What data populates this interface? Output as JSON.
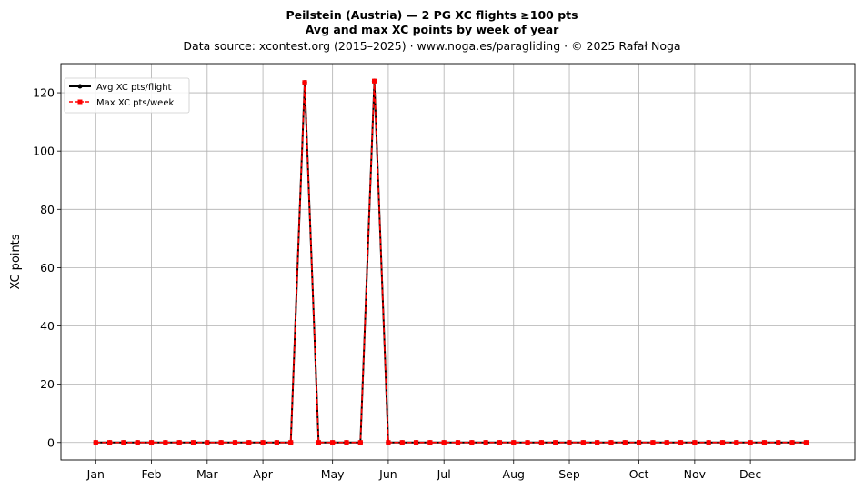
{
  "chart_data": {
    "type": "line",
    "title": "Peilstein (Austria)  —  2 PG XC flights ≥100 pts",
    "subtitle": "Avg and max XC points by week of year",
    "source": "Data source: xcontest.org (2015–2025)  ·  www.noga.es/paragliding  ·  © 2025 Rafał Noga",
    "ylabel": "XC points",
    "xlabel": "",
    "ylim": [
      -6,
      130
    ],
    "xlim": [
      -2.5,
      54.5
    ],
    "yticks": [
      0,
      20,
      40,
      60,
      80,
      100,
      120
    ],
    "xticks": [
      {
        "label": "Jan",
        "week": 0
      },
      {
        "label": "Feb",
        "week": 4
      },
      {
        "label": "Mar",
        "week": 8
      },
      {
        "label": "Apr",
        "week": 12
      },
      {
        "label": "May",
        "week": 17
      },
      {
        "label": "Jun",
        "week": 21
      },
      {
        "label": "Jul",
        "week": 25
      },
      {
        "label": "Aug",
        "week": 30
      },
      {
        "label": "Sep",
        "week": 34
      },
      {
        "label": "Oct",
        "week": 39
      },
      {
        "label": "Nov",
        "week": 43
      },
      {
        "label": "Dec",
        "week": 47
      }
    ],
    "grid": true,
    "legend_position": "top-left",
    "x": [
      0,
      1,
      2,
      3,
      4,
      5,
      6,
      7,
      8,
      9,
      10,
      11,
      12,
      13,
      14,
      15,
      16,
      17,
      18,
      19,
      20,
      21,
      22,
      23,
      24,
      25,
      26,
      27,
      28,
      29,
      30,
      31,
      32,
      33,
      34,
      35,
      36,
      37,
      38,
      39,
      40,
      41,
      42,
      43,
      44,
      45,
      46,
      47,
      48,
      49,
      50,
      51
    ],
    "series": [
      {
        "name": "Avg XC pts/flight",
        "color": "#000000",
        "marker": "circle",
        "style": "solid",
        "values": [
          0,
          0,
          0,
          0,
          0,
          0,
          0,
          0,
          0,
          0,
          0,
          0,
          0,
          0,
          0,
          123.5,
          0,
          0,
          0,
          0,
          124,
          0,
          0,
          0,
          0,
          0,
          0,
          0,
          0,
          0,
          0,
          0,
          0,
          0,
          0,
          0,
          0,
          0,
          0,
          0,
          0,
          0,
          0,
          0,
          0,
          0,
          0,
          0,
          0,
          0,
          0,
          0
        ]
      },
      {
        "name": "Max XC pts/week",
        "color": "#ff0000",
        "marker": "square",
        "style": "dashed",
        "values": [
          0,
          0,
          0,
          0,
          0,
          0,
          0,
          0,
          0,
          0,
          0,
          0,
          0,
          0,
          0,
          123.5,
          0,
          0,
          0,
          0,
          124,
          0,
          0,
          0,
          0,
          0,
          0,
          0,
          0,
          0,
          0,
          0,
          0,
          0,
          0,
          0,
          0,
          0,
          0,
          0,
          0,
          0,
          0,
          0,
          0,
          0,
          0,
          0,
          0,
          0,
          0,
          0
        ]
      }
    ]
  }
}
